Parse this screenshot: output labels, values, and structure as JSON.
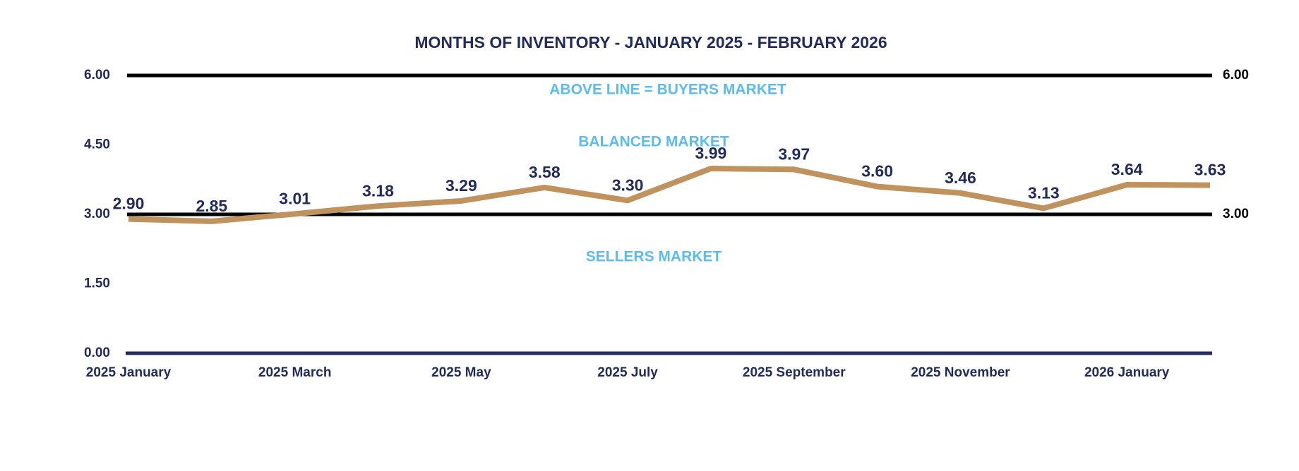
{
  "chart_data": {
    "type": "line",
    "title": "MONTHS OF INVENTORY - JANUARY 2025 - FEBRUARY 2026",
    "annotations": [
      "ABOVE LINE = BUYERS MARKET",
      "BALANCED MARKET",
      "SELLERS MARKET"
    ],
    "categories": [
      "2025 January",
      null,
      "2025 March",
      null,
      "2025 May",
      null,
      "2025 July",
      null,
      "2025 September",
      null,
      "2025 November",
      null,
      "2026 January",
      null
    ],
    "series": [
      {
        "color": "#c0935e",
        "values": [
          2.9,
          2.85,
          3.01,
          3.18,
          3.29,
          3.58,
          3.3,
          3.99,
          3.97,
          3.6,
          3.46,
          3.13,
          3.64,
          3.63
        ],
        "value_labels": [
          "2.90",
          "2.85",
          "3.01",
          "3.18",
          "3.29",
          "3.58",
          "3.30",
          "3.99",
          "3.97",
          "3.60",
          "3.46",
          "3.13",
          "3.64",
          "3.63"
        ]
      }
    ],
    "ylim": [
      0,
      6
    ],
    "yticks": [
      {
        "value": 0,
        "label": "0.00"
      },
      {
        "value": 1.5,
        "label": "1.50"
      },
      {
        "value": 3,
        "label": "3.00"
      },
      {
        "value": 4.5,
        "label": "4.50"
      },
      {
        "value": 6,
        "label": "6.00"
      }
    ],
    "y2lim": [
      0,
      6
    ],
    "y2ticks": [
      {
        "value": 3,
        "label": "3.00"
      },
      {
        "value": 6,
        "label": "6.00"
      }
    ]
  }
}
